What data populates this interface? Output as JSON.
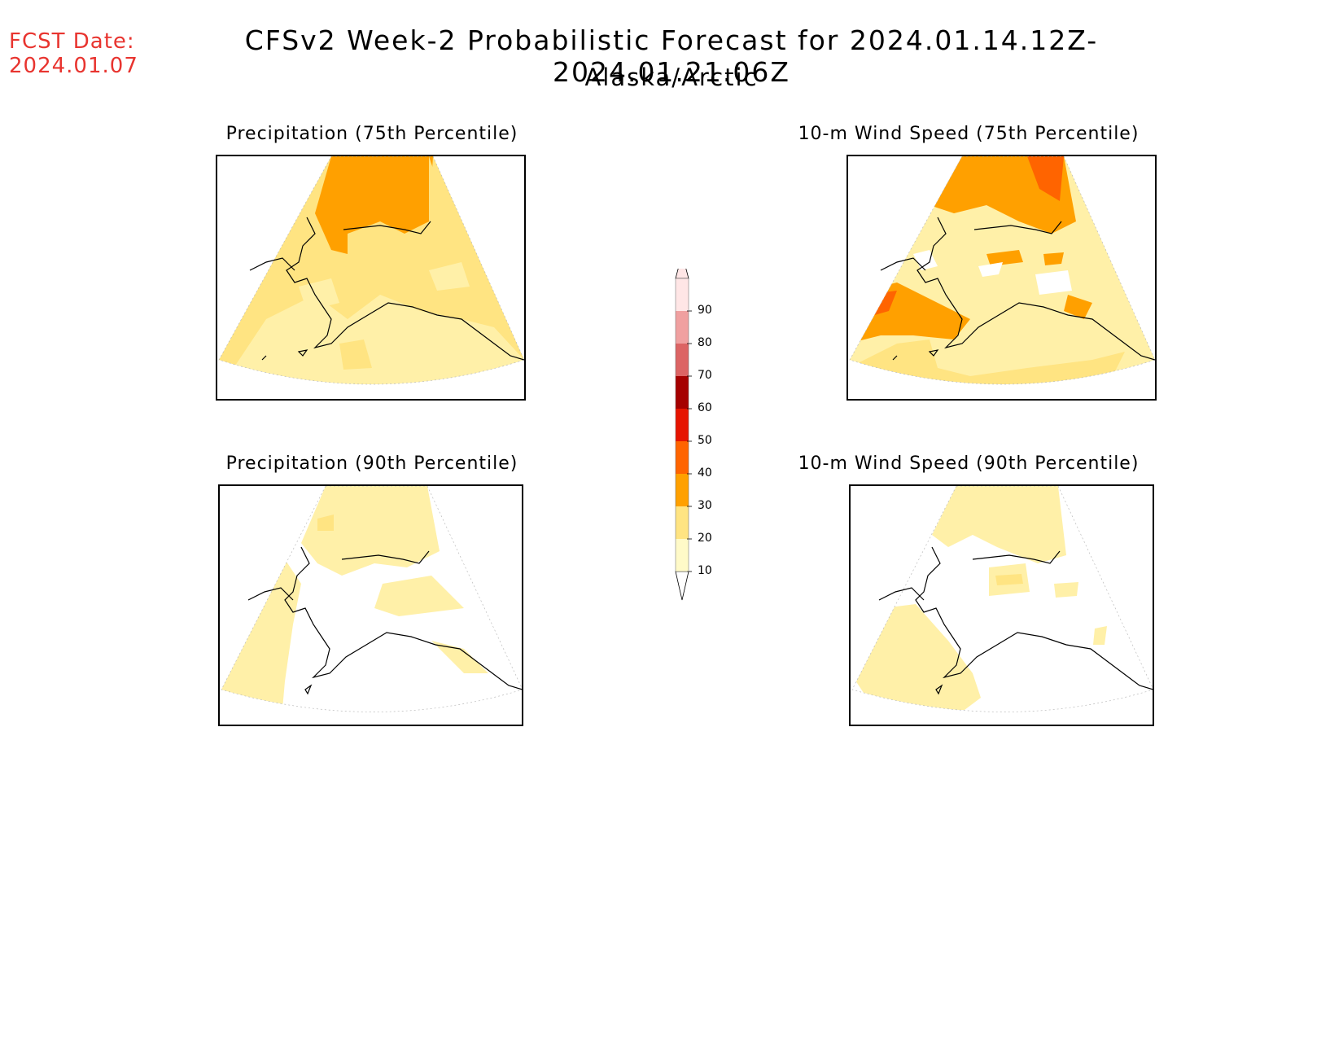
{
  "header": {
    "fcst_label": "FCST Date:",
    "fcst_date": "2024.01.07",
    "title": "CFSv2 Week-2 Probabilistic Forecast for 2024.01.14.12Z-2024.01.21.06Z",
    "subtitle": "Alaska/Arctic"
  },
  "panels": [
    {
      "title": "Precipitation (75th Percentile)"
    },
    {
      "title": "10-m Wind Speed (75th Percentile)"
    },
    {
      "title": "Precipitation (90th Percentile)"
    },
    {
      "title": "10-m Wind Speed (90th Percentile)"
    }
  ],
  "colorbar": {
    "levels": [
      "10",
      "20",
      "30",
      "40",
      "50",
      "60",
      "70",
      "80",
      "90"
    ],
    "colors": [
      "#fffac8",
      "#ffe482",
      "#ffa000",
      "#ff6400",
      "#e61400",
      "#a50000",
      "#dc6464",
      "#f0a0a0",
      "#ffe6e6"
    ]
  }
}
